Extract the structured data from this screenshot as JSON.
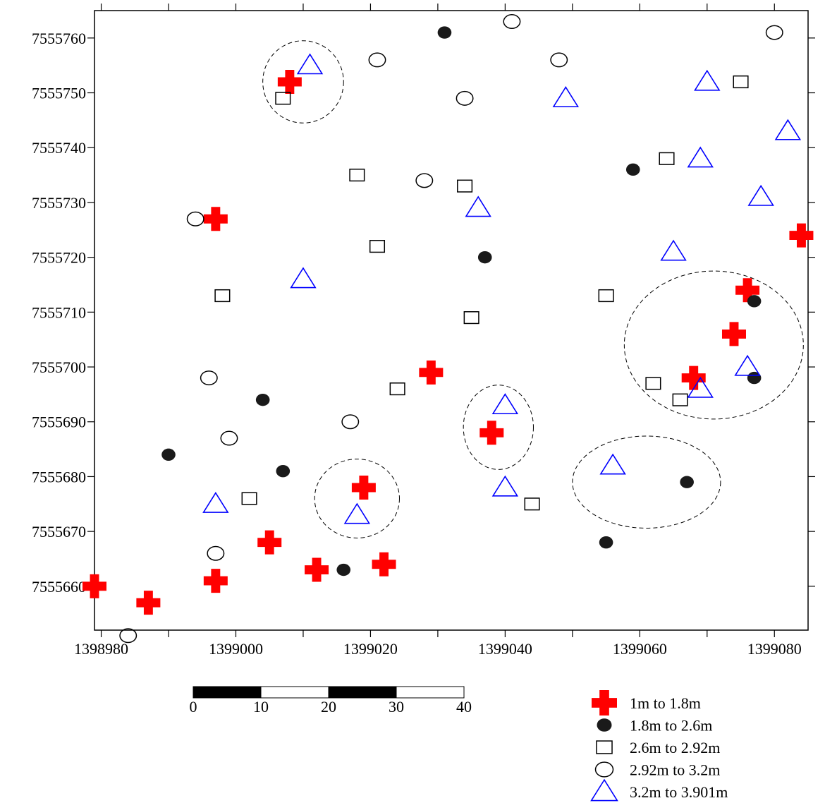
{
  "chart_data": {
    "type": "scatter",
    "xlim": [
      1398979,
      1399085
    ],
    "ylim": [
      7555652,
      7555765
    ],
    "x_ticks": [
      1398980,
      1399000,
      1399020,
      1399040,
      1399060,
      1399080
    ],
    "x_tick_labels": [
      "1398980",
      "1399000",
      "1399020",
      "1399040",
      "1399060",
      "1399080"
    ],
    "x_minor_ticks": [
      1398990,
      1399010,
      1399030,
      1399050,
      1399070
    ],
    "y_ticks": [
      7555660,
      7555670,
      7555680,
      7555690,
      7555700,
      7555710,
      7555720,
      7555730,
      7555740,
      7555750,
      7555760
    ],
    "y_tick_labels": [
      "7555660",
      "7555670",
      "7555680",
      "7555690",
      "7555700",
      "7555710",
      "7555720",
      "7555730",
      "7555740",
      "7555750",
      "7555760"
    ],
    "grid": false,
    "legend_position": "bottom-right",
    "series": [
      {
        "name": "1m  to  1.8m",
        "marker": "cross",
        "color": "#ff0000",
        "points": [
          [
            1399008,
            7555752
          ],
          [
            1398997,
            7555727
          ],
          [
            1399029,
            7555699
          ],
          [
            1399038,
            7555688
          ],
          [
            1399019,
            7555678
          ],
          [
            1399005,
            7555668
          ],
          [
            1399012,
            7555663
          ],
          [
            1399022,
            7555664
          ],
          [
            1398997,
            7555661
          ],
          [
            1398987,
            7555657
          ],
          [
            1398979,
            7555660
          ],
          [
            1399084,
            7555724
          ],
          [
            1399076,
            7555714
          ],
          [
            1399074,
            7555706
          ],
          [
            1399068,
            7555698
          ]
        ]
      },
      {
        "name": "1.8m  to  2.6m",
        "marker": "filled-circle",
        "color": "#1a1a1a",
        "points": [
          [
            1399031,
            7555761
          ],
          [
            1399059,
            7555736
          ],
          [
            1399037,
            7555720
          ],
          [
            1399077,
            7555712
          ],
          [
            1399077,
            7555698
          ],
          [
            1399004,
            7555694
          ],
          [
            1398990,
            7555684
          ],
          [
            1399007,
            7555681
          ],
          [
            1399067,
            7555679
          ],
          [
            1399055,
            7555668
          ],
          [
            1399016,
            7555663
          ]
        ]
      },
      {
        "name": "2.6m  to  2.92m",
        "marker": "square",
        "color": "#000000",
        "points": [
          [
            1399075,
            7555752
          ],
          [
            1399007,
            7555749
          ],
          [
            1399064,
            7555738
          ],
          [
            1399018,
            7555735
          ],
          [
            1399034,
            7555733
          ],
          [
            1399021,
            7555722
          ],
          [
            1398998,
            7555713
          ],
          [
            1399055,
            7555713
          ],
          [
            1399035,
            7555709
          ],
          [
            1399024,
            7555696
          ],
          [
            1399062,
            7555697
          ],
          [
            1399066,
            7555694
          ],
          [
            1399002,
            7555676
          ],
          [
            1399044,
            7555675
          ]
        ]
      },
      {
        "name": "2.92m  to  3.2m",
        "marker": "circle",
        "color": "#000000",
        "points": [
          [
            1399041,
            7555763
          ],
          [
            1399080,
            7555761
          ],
          [
            1399021,
            7555756
          ],
          [
            1399048,
            7555756
          ],
          [
            1399034,
            7555749
          ],
          [
            1399028,
            7555734
          ],
          [
            1398994,
            7555727
          ],
          [
            1398996,
            7555698
          ],
          [
            1399017,
            7555690
          ],
          [
            1398999,
            7555687
          ],
          [
            1398997,
            7555666
          ],
          [
            1398984,
            7555651
          ]
        ]
      },
      {
        "name": "3.2m  to  3.901m",
        "marker": "triangle",
        "color": "#0000ff",
        "points": [
          [
            1399011,
            7555755
          ],
          [
            1399070,
            7555752
          ],
          [
            1399049,
            7555749
          ],
          [
            1399082,
            7555743
          ],
          [
            1399069,
            7555738
          ],
          [
            1399078,
            7555731
          ],
          [
            1399036,
            7555729
          ],
          [
            1399065,
            7555721
          ],
          [
            1399010,
            7555716
          ],
          [
            1399076,
            7555700
          ],
          [
            1399069,
            7555696
          ],
          [
            1399040,
            7555693
          ],
          [
            1399056,
            7555682
          ],
          [
            1399040,
            7555678
          ],
          [
            1398997,
            7555675
          ],
          [
            1399018,
            7555673
          ]
        ]
      }
    ],
    "cluster_ellipses": [
      {
        "cx": 1399010,
        "cy": 7555752,
        "rx": 6,
        "ry": 7.5
      },
      {
        "cx": 1399071,
        "cy": 7555704,
        "rx": 13.3,
        "ry": 13.5
      },
      {
        "cx": 1399039,
        "cy": 7555689,
        "rx": 5.2,
        "ry": 7.7
      },
      {
        "cx": 1399018,
        "cy": 7555676,
        "rx": 6.3,
        "ry": 7.2
      },
      {
        "cx": 1399061,
        "cy": 7555679,
        "rx": 11,
        "ry": 8.4
      }
    ],
    "scale_bar": {
      "labels": [
        "0",
        "10",
        "20",
        "30",
        "40"
      ],
      "segment_colors": [
        "#000000",
        "#ffffff",
        "#000000",
        "#ffffff"
      ]
    }
  }
}
